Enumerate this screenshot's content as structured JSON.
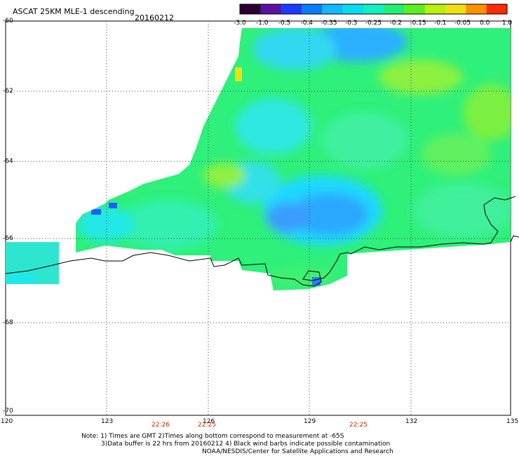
{
  "header": {
    "title": "ASCAT 25KM MLE-1 descending",
    "date": "20160212"
  },
  "colorbar": {
    "labels": [
      "-3.0",
      "-1.0",
      "-0.5",
      "-0.4",
      "-0.35",
      "-0.3",
      "-0.25",
      "-0.2",
      "-0.15",
      "-0.1",
      "-0.05",
      "0.0",
      "1.0"
    ],
    "colors": [
      "#2a0030",
      "#5a10a0",
      "#1a3cff",
      "#0a7cff",
      "#14b8ff",
      "#0adcf0",
      "#10f0c0",
      "#20f070",
      "#5af020",
      "#b8f010",
      "#f0e010",
      "#ff9000",
      "#ff2a00"
    ]
  },
  "map": {
    "lat_labels": [
      "-60",
      "-62",
      "-64",
      "-66",
      "-68",
      "-70"
    ],
    "lon_labels": [
      "120",
      "123",
      "126",
      "129",
      "132",
      "135"
    ],
    "time_labels": [
      "22:26",
      "22:25",
      "22:25"
    ]
  },
  "notes": {
    "line1": "Note: 1) Times are GMT 2)Times along bottom correspond to measurement at -65S",
    "line2": "3)Data buffer is 22 hrs from 20160212 4) Black wind barbs indicate possible contamination",
    "line3": "NOAA/NESDIS/Center for Satellite Applications and Research"
  }
}
